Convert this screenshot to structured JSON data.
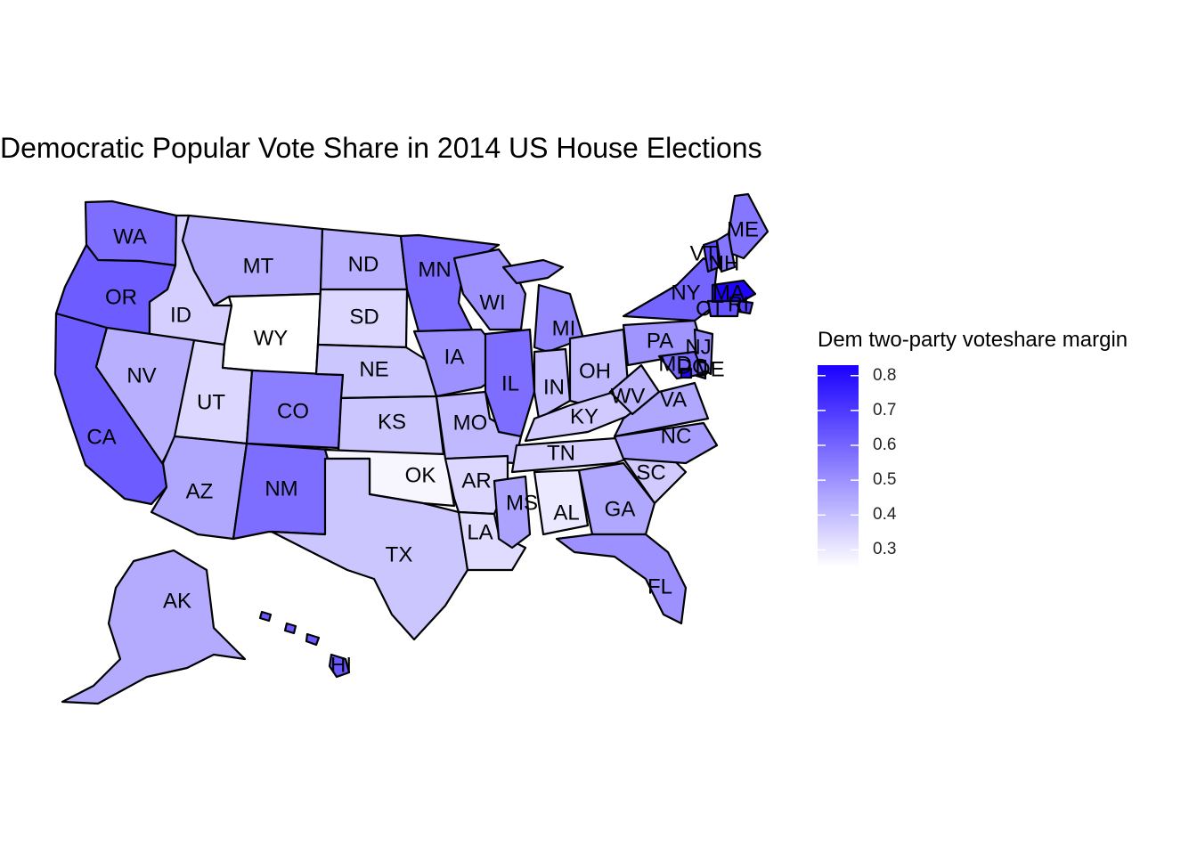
{
  "title": "Democratic Popular Vote Share in 2014 US House Elections",
  "legend": {
    "title": "Dem two-party voteshare margin",
    "ticks": [
      "0.8",
      "0.7",
      "0.6",
      "0.5",
      "0.4",
      "0.3"
    ],
    "low_color": "#ffffff",
    "high_color": "#1a00ff",
    "range": [
      0.25,
      0.83
    ]
  },
  "states": [
    {
      "abbr": "WA",
      "value": 0.58
    },
    {
      "abbr": "OR",
      "value": 0.62
    },
    {
      "abbr": "CA",
      "value": 0.62
    },
    {
      "abbr": "ID",
      "value": 0.36
    },
    {
      "abbr": "NV",
      "value": 0.43
    },
    {
      "abbr": "MT",
      "value": 0.44
    },
    {
      "abbr": "WY",
      "value": 0.25
    },
    {
      "abbr": "UT",
      "value": 0.34
    },
    {
      "abbr": "AZ",
      "value": 0.45
    },
    {
      "abbr": "CO",
      "value": 0.54
    },
    {
      "abbr": "NM",
      "value": 0.58
    },
    {
      "abbr": "ND",
      "value": 0.43
    },
    {
      "abbr": "SD",
      "value": 0.34
    },
    {
      "abbr": "NE",
      "value": 0.38
    },
    {
      "abbr": "KS",
      "value": 0.38
    },
    {
      "abbr": "OK",
      "value": 0.27
    },
    {
      "abbr": "TX",
      "value": 0.38
    },
    {
      "abbr": "MN",
      "value": 0.58
    },
    {
      "abbr": "IA",
      "value": 0.5
    },
    {
      "abbr": "MO",
      "value": 0.41
    },
    {
      "abbr": "AR",
      "value": 0.34
    },
    {
      "abbr": "LA",
      "value": 0.33
    },
    {
      "abbr": "WI",
      "value": 0.5
    },
    {
      "abbr": "IL",
      "value": 0.58
    },
    {
      "abbr": "MI",
      "value": 0.52
    },
    {
      "abbr": "IN",
      "value": 0.4
    },
    {
      "abbr": "OH",
      "value": 0.41
    },
    {
      "abbr": "KY",
      "value": 0.37
    },
    {
      "abbr": "TN",
      "value": 0.36
    },
    {
      "abbr": "MS",
      "value": 0.46
    },
    {
      "abbr": "AL",
      "value": 0.3
    },
    {
      "abbr": "GA",
      "value": 0.45
    },
    {
      "abbr": "FL",
      "value": 0.5
    },
    {
      "abbr": "SC",
      "value": 0.37
    },
    {
      "abbr": "NC",
      "value": 0.47
    },
    {
      "abbr": "VA",
      "value": 0.45
    },
    {
      "abbr": "WV",
      "value": 0.42
    },
    {
      "abbr": "PA",
      "value": 0.49
    },
    {
      "abbr": "NY",
      "value": 0.6
    },
    {
      "abbr": "VT",
      "value": 0.66
    },
    {
      "abbr": "NH",
      "value": 0.56
    },
    {
      "abbr": "ME",
      "value": 0.56
    },
    {
      "abbr": "MA",
      "value": 0.82
    },
    {
      "abbr": "RI",
      "value": 0.68
    },
    {
      "abbr": "CT",
      "value": 0.64
    },
    {
      "abbr": "NJ",
      "value": 0.52
    },
    {
      "abbr": "DE",
      "value": 0.59
    },
    {
      "abbr": "MD",
      "value": 0.59
    },
    {
      "abbr": "DC",
      "value": 0.82
    },
    {
      "abbr": "AK",
      "value": 0.44
    },
    {
      "abbr": "HI",
      "value": 0.63
    }
  ]
}
